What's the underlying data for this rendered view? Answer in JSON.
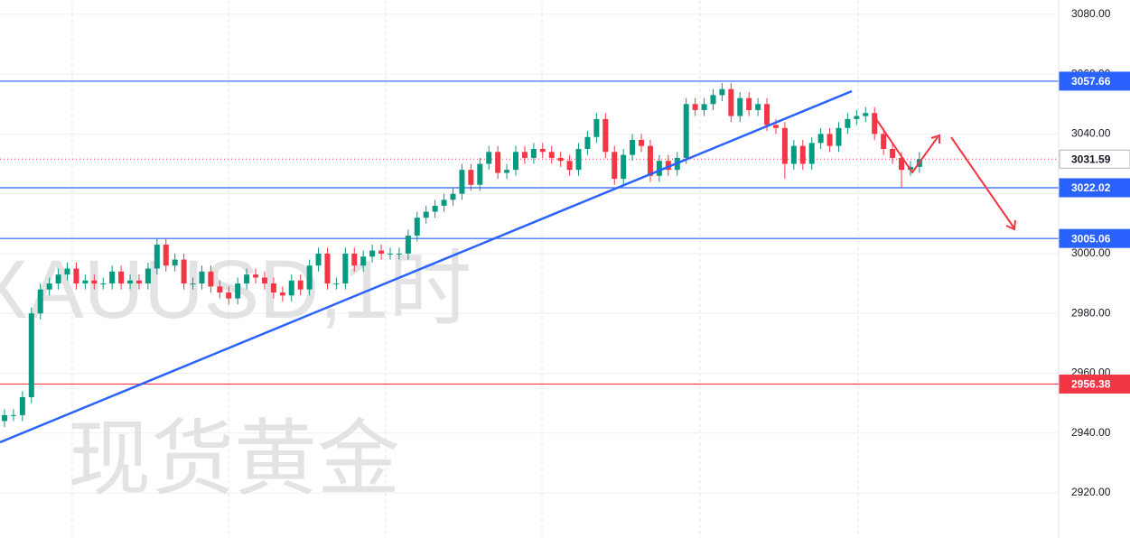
{
  "chart_data": {
    "type": "candlestick",
    "watermark": [
      "XAUUSD,1时",
      "现货黄金"
    ],
    "up_color": "#089981",
    "down_color": "#f23645",
    "open": [
      2944,
      2946,
      2946,
      2952,
      2980,
      2988,
      2990,
      2993,
      2995,
      2990,
      2991,
      2990,
      2990,
      2994,
      2990,
      2991,
      2990,
      2995,
      3003,
      2996,
      2998,
      2990,
      2990,
      2994,
      2989,
      2987,
      2985,
      2990,
      2993,
      2992,
      2990,
      2987,
      2986,
      2991,
      2988,
      2996,
      3000,
      2990,
      2990,
      3000,
      2996,
      2999,
      3001,
      3000,
      3000,
      3000,
      3006,
      3012,
      3014,
      3016,
      3018,
      3020,
      3028,
      3023,
      3030,
      3034,
      3027,
      3028,
      3034,
      3032,
      3035,
      3034,
      3032,
      3031,
      3028,
      3035,
      3039,
      3045,
      3034,
      3025,
      3033,
      3038,
      3036,
      3026,
      3031,
      3028,
      3032,
      3050,
      3048,
      3050,
      3053,
      3055,
      3046,
      3052,
      3048,
      3050,
      3043,
      3042,
      3030,
      3036,
      3030,
      3037,
      3040,
      3036,
      3042,
      3045,
      3046,
      3047,
      3040,
      3035,
      3032,
      3028,
      3029
    ],
    "high": [
      2948,
      2948,
      2954,
      2982,
      2990,
      2992,
      2995,
      2997,
      2997,
      2993,
      2993,
      2992,
      2996,
      2996,
      2993,
      2993,
      2997,
      3005,
      3005,
      3000,
      3000,
      2992,
      2996,
      2996,
      2991,
      2989,
      2992,
      2995,
      2995,
      2994,
      2992,
      2989,
      2993,
      2993,
      2998,
      3002,
      3002,
      2992,
      3002,
      3002,
      3001,
      3003,
      3003,
      3002,
      3002,
      3008,
      3014,
      3016,
      3018,
      3020,
      3022,
      3030,
      3030,
      3032,
      3036,
      3036,
      3030,
      3036,
      3036,
      3037,
      3037,
      3036,
      3034,
      3033,
      3037,
      3041,
      3047,
      3047,
      3036,
      3035,
      3040,
      3040,
      3038,
      3033,
      3033,
      3034,
      3052,
      3052,
      3052,
      3055,
      3057,
      3057,
      3054,
      3054,
      3052,
      3052,
      3045,
      3044,
      3038,
      3038,
      3039,
      3042,
      3042,
      3044,
      3047,
      3048,
      3049,
      3049,
      3042,
      3037,
      3034,
      3031,
      3034
    ],
    "low": [
      2942,
      2944,
      2944,
      2950,
      2978,
      2986,
      2988,
      2991,
      2988,
      2988,
      2988,
      2988,
      2988,
      2988,
      2988,
      2988,
      2988,
      2993,
      2994,
      2994,
      2988,
      2988,
      2988,
      2987,
      2985,
      2983,
      2983,
      2988,
      2990,
      2988,
      2985,
      2984,
      2984,
      2986,
      2986,
      2994,
      2988,
      2988,
      2988,
      2994,
      2994,
      2997,
      2998,
      2998,
      2998,
      2998,
      3004,
      3010,
      3012,
      3014,
      3016,
      3018,
      3021,
      3021,
      3028,
      3025,
      3025,
      3026,
      3030,
      3030,
      3032,
      3030,
      3029,
      3026,
      3026,
      3033,
      3037,
      3032,
      3023,
      3023,
      3031,
      3034,
      3024,
      3024,
      3026,
      3026,
      3030,
      3046,
      3046,
      3048,
      3051,
      3044,
      3044,
      3046,
      3046,
      3041,
      3040,
      3025,
      3028,
      3028,
      3028,
      3035,
      3034,
      3034,
      3040,
      3043,
      3044,
      3038,
      3033,
      3030,
      3022,
      3026,
      3027
    ],
    "close": [
      2946,
      2946,
      2952,
      2980,
      2988,
      2990,
      2993,
      2995,
      2990,
      2991,
      2990,
      2990,
      2994,
      2990,
      2991,
      2990,
      2995,
      3003,
      2996,
      2998,
      2990,
      2990,
      2994,
      2989,
      2987,
      2985,
      2990,
      2993,
      2992,
      2990,
      2987,
      2986,
      2991,
      2988,
      2996,
      3000,
      2990,
      2990,
      3000,
      2996,
      2999,
      3001,
      3000,
      3000,
      3000,
      3006,
      3012,
      3014,
      3016,
      3018,
      3020,
      3028,
      3023,
      3030,
      3034,
      3027,
      3028,
      3034,
      3032,
      3035,
      3034,
      3032,
      3031,
      3028,
      3035,
      3039,
      3045,
      3034,
      3025,
      3033,
      3038,
      3036,
      3026,
      3031,
      3028,
      3032,
      3050,
      3048,
      3050,
      3053,
      3055,
      3046,
      3052,
      3048,
      3050,
      3043,
      3042,
      3030,
      3036,
      3030,
      3037,
      3040,
      3036,
      3042,
      3045,
      3046,
      3047,
      3040,
      3035,
      3032,
      3028,
      3029,
      3031.59
    ],
    "price_lines": [
      {
        "price": 3057.66,
        "color": "#2962ff"
      },
      {
        "price": 3022.02,
        "color": "#2962ff"
      },
      {
        "price": 3005.06,
        "color": "#2962ff"
      },
      {
        "price": 2956.38,
        "color": "#f23645"
      }
    ],
    "ylim": [
      2904.9,
      3084.8
    ],
    "yticks": [
      {
        "value": 2920,
        "label": "2920.00"
      },
      {
        "value": 2940,
        "label": "2940.00"
      },
      {
        "value": 2960,
        "label": "2960.00"
      },
      {
        "value": 2980,
        "label": "2980.00"
      },
      {
        "value": 3000,
        "label": "3000.00"
      },
      {
        "value": 3020,
        "label": "3020.00"
      },
      {
        "value": 3040,
        "label": "3040.00"
      },
      {
        "value": 3060,
        "label": "3060.00"
      },
      {
        "value": 3080,
        "label": "3080.00"
      }
    ],
    "grid": true
  }
}
